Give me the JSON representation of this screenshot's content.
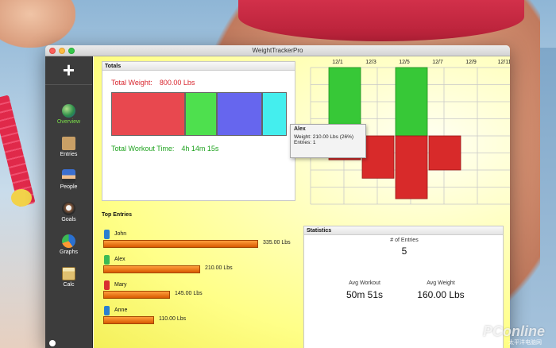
{
  "window": {
    "title": "WeightTrackerPro"
  },
  "sidebar": {
    "add_label": "+",
    "items": [
      {
        "label": "Overview",
        "icon": "globe-icon",
        "active": true
      },
      {
        "label": "Entries",
        "icon": "box-icon"
      },
      {
        "label": "People",
        "icon": "people-icon"
      },
      {
        "label": "Goals",
        "icon": "goals-icon"
      },
      {
        "label": "Graphs",
        "icon": "pie-chart-icon"
      },
      {
        "label": "Calc",
        "icon": "calculator-icon"
      }
    ]
  },
  "totals": {
    "heading": "Totals",
    "weight_label": "Total Weight:",
    "weight_value": "800.00 Lbs",
    "time_label": "Total Workout Time:",
    "time_value": "4h 14m 15s",
    "segments": [
      {
        "name": "John",
        "share": 0.42,
        "color": "#e8484f"
      },
      {
        "name": "Mary",
        "share": 0.18,
        "color": "#4ee04e"
      },
      {
        "name": "Alex",
        "share": 0.26,
        "color": "#6666ee"
      },
      {
        "name": "Anne",
        "share": 0.14,
        "color": "#44eeee"
      }
    ],
    "tooltip": {
      "name": "Alex",
      "weight_line": "Weight: 210.00 Lbs  (26%)",
      "entries_line": "Entries: 1"
    }
  },
  "chart_data": {
    "type": "bar",
    "categories": [
      "12/1",
      "12/3",
      "12/5",
      "12/7",
      "12/9",
      "12/11"
    ],
    "series": [
      {
        "color": "#37c837",
        "points": [
          {
            "x": "12/1",
            "y": 1.0
          },
          {
            "x": "12/5",
            "y": 1.0
          }
        ]
      },
      {
        "color": "#d82a2a",
        "points": [
          {
            "x": "12/1",
            "y": -0.35
          },
          {
            "x": "12/3",
            "y": -0.62
          },
          {
            "x": "12/5",
            "y": -0.92
          },
          {
            "x": "12/7",
            "y": -0.5
          }
        ]
      }
    ],
    "ylim": [
      -1,
      1
    ],
    "grid": true
  },
  "top_entries": {
    "heading": "Top Entries",
    "items": [
      {
        "name": "John",
        "value": "335.00 Lbs",
        "pounds": 335,
        "color": "#2a7fd0"
      },
      {
        "name": "Alex",
        "value": "210.00 Lbs",
        "pounds": 210,
        "color": "#3cba54"
      },
      {
        "name": "Mary",
        "value": "145.00 Lbs",
        "pounds": 145,
        "color": "#d83030"
      },
      {
        "name": "Anne",
        "value": "110.00 Lbs",
        "pounds": 110,
        "color": "#2a7fd0"
      }
    ]
  },
  "statistics": {
    "heading": "Statistics",
    "entries_label": "# of Entries",
    "entries_value": "5",
    "avg_workout_label": "Avg Workout",
    "avg_workout_value": "50m 51s",
    "avg_weight_label": "Avg Weight",
    "avg_weight_value": "160.00 Lbs"
  },
  "watermark": {
    "brand": "PConline",
    "sub": "太平洋电脑网"
  }
}
